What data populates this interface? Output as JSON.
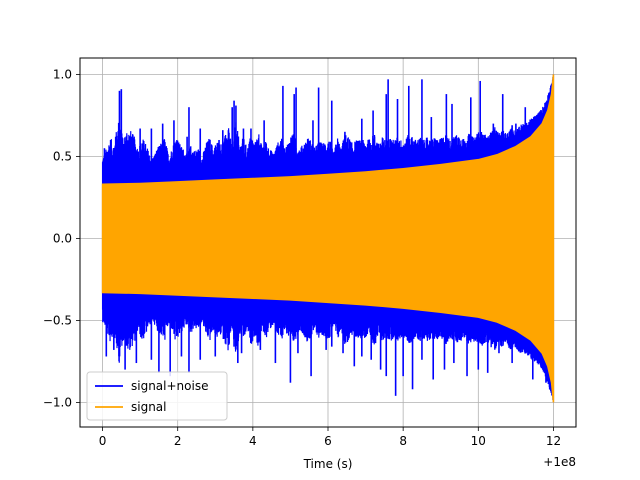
{
  "chart_data": {
    "type": "line",
    "title": "",
    "xlabel": "Time (s)",
    "ylabel": "",
    "x_offset_label": "+1e8",
    "xlim": [
      -0.6,
      12.6
    ],
    "ylim": [
      -1.15,
      1.1
    ],
    "xticks": [
      0,
      2,
      4,
      6,
      8,
      10,
      12
    ],
    "xtick_labels": [
      "0",
      "2",
      "4",
      "6",
      "8",
      "10",
      "12"
    ],
    "yticks": [
      -1.0,
      -0.5,
      0.0,
      0.5,
      1.0
    ],
    "ytick_labels": [
      "−1.0",
      "−0.5",
      "0.0",
      "0.5",
      "1.0"
    ],
    "grid": true,
    "legend_position": "lower-left",
    "series": [
      {
        "name": "signal+noise",
        "color": "#0000ff",
        "description_t": [
          0,
          12
        ],
        "upper": [
          [
            0.0,
            0.5
          ],
          [
            0.1,
            0.55
          ],
          [
            0.2,
            0.62
          ],
          [
            0.3,
            0.58
          ],
          [
            0.45,
            0.75
          ],
          [
            0.55,
            0.6
          ],
          [
            0.65,
            0.68
          ],
          [
            0.75,
            0.66
          ],
          [
            0.85,
            0.62
          ],
          [
            0.95,
            0.55
          ],
          [
            1.05,
            0.62
          ],
          [
            1.15,
            0.58
          ],
          [
            1.25,
            0.52
          ],
          [
            1.35,
            0.5
          ],
          [
            1.45,
            0.55
          ],
          [
            1.55,
            0.58
          ],
          [
            1.65,
            0.62
          ],
          [
            1.75,
            0.52
          ],
          [
            1.85,
            0.55
          ],
          [
            1.95,
            0.64
          ],
          [
            2.05,
            0.58
          ],
          [
            2.15,
            0.55
          ],
          [
            2.25,
            0.52
          ],
          [
            2.35,
            0.57
          ],
          [
            2.45,
            0.54
          ],
          [
            2.55,
            0.55
          ],
          [
            2.65,
            0.5
          ],
          [
            2.75,
            0.58
          ],
          [
            2.85,
            0.62
          ],
          [
            2.95,
            0.55
          ],
          [
            3.05,
            0.6
          ],
          [
            3.15,
            0.58
          ],
          [
            3.25,
            0.62
          ],
          [
            3.35,
            0.68
          ],
          [
            3.45,
            0.55
          ],
          [
            3.55,
            0.72
          ],
          [
            3.65,
            0.58
          ],
          [
            3.75,
            0.62
          ],
          [
            3.85,
            0.55
          ],
          [
            3.95,
            0.64
          ],
          [
            4.05,
            0.58
          ],
          [
            4.15,
            0.66
          ],
          [
            4.25,
            0.55
          ],
          [
            4.35,
            0.6
          ],
          [
            4.45,
            0.55
          ],
          [
            4.55,
            0.52
          ],
          [
            4.65,
            0.58
          ],
          [
            4.75,
            0.62
          ],
          [
            4.85,
            0.55
          ],
          [
            4.95,
            0.6
          ],
          [
            5.05,
            0.65
          ],
          [
            5.15,
            0.6
          ],
          [
            5.25,
            0.55
          ],
          [
            5.35,
            0.58
          ],
          [
            5.45,
            0.62
          ],
          [
            5.55,
            0.6
          ],
          [
            5.65,
            0.55
          ],
          [
            5.75,
            0.6
          ],
          [
            5.85,
            0.58
          ],
          [
            5.95,
            0.6
          ],
          [
            6.05,
            0.6
          ],
          [
            6.15,
            0.52
          ],
          [
            6.25,
            0.62
          ],
          [
            6.35,
            0.55
          ],
          [
            6.45,
            0.64
          ],
          [
            6.55,
            0.62
          ],
          [
            6.65,
            0.58
          ],
          [
            6.75,
            0.6
          ],
          [
            6.85,
            0.6
          ],
          [
            6.95,
            0.6
          ],
          [
            7.05,
            0.6
          ],
          [
            7.15,
            0.62
          ],
          [
            7.25,
            0.64
          ],
          [
            7.35,
            0.58
          ],
          [
            7.45,
            0.62
          ],
          [
            7.55,
            0.6
          ],
          [
            7.65,
            0.62
          ],
          [
            7.75,
            0.6
          ],
          [
            7.85,
            0.62
          ],
          [
            7.95,
            0.6
          ],
          [
            8.05,
            0.6
          ],
          [
            8.15,
            0.64
          ],
          [
            8.25,
            0.62
          ],
          [
            8.35,
            0.6
          ],
          [
            8.45,
            0.62
          ],
          [
            8.55,
            0.6
          ],
          [
            8.65,
            0.62
          ],
          [
            8.75,
            0.6
          ],
          [
            8.85,
            0.62
          ],
          [
            8.95,
            0.6
          ],
          [
            9.05,
            0.62
          ],
          [
            9.15,
            0.64
          ],
          [
            9.25,
            0.6
          ],
          [
            9.35,
            0.62
          ],
          [
            9.45,
            0.64
          ],
          [
            9.55,
            0.62
          ],
          [
            9.65,
            0.6
          ],
          [
            9.75,
            0.64
          ],
          [
            9.85,
            0.62
          ],
          [
            9.95,
            0.64
          ],
          [
            10.05,
            0.66
          ],
          [
            10.15,
            0.64
          ],
          [
            10.25,
            0.62
          ],
          [
            10.35,
            0.66
          ],
          [
            10.45,
            0.68
          ],
          [
            10.55,
            0.64
          ],
          [
            10.65,
            0.66
          ],
          [
            10.75,
            0.64
          ],
          [
            10.85,
            0.68
          ],
          [
            10.95,
            0.66
          ],
          [
            11.05,
            0.68
          ],
          [
            11.15,
            0.7
          ],
          [
            11.25,
            0.7
          ],
          [
            11.35,
            0.72
          ],
          [
            11.45,
            0.74
          ],
          [
            11.55,
            0.76
          ],
          [
            11.65,
            0.78
          ],
          [
            11.75,
            0.82
          ],
          [
            11.85,
            0.88
          ],
          [
            11.95,
            0.95
          ],
          [
            12.0,
            1.0
          ]
        ],
        "spikes": [
          [
            0.05,
            0.55
          ],
          [
            0.35,
            0.62
          ],
          [
            0.45,
            0.9
          ],
          [
            0.5,
            0.91
          ],
          [
            1.0,
            0.67
          ],
          [
            1.1,
            0.58
          ],
          [
            1.3,
            0.67
          ],
          [
            1.6,
            0.7
          ],
          [
            1.9,
            0.72
          ],
          [
            2.25,
            0.62
          ],
          [
            2.3,
            0.8
          ],
          [
            2.6,
            0.67
          ],
          [
            3.1,
            0.6
          ],
          [
            3.2,
            0.66
          ],
          [
            3.3,
            0.61
          ],
          [
            3.35,
            0.66
          ],
          [
            3.45,
            0.8
          ],
          [
            3.5,
            0.84
          ],
          [
            3.55,
            0.81
          ],
          [
            3.75,
            0.67
          ],
          [
            3.95,
            0.67
          ],
          [
            4.3,
            0.72
          ],
          [
            4.8,
            0.93
          ],
          [
            5.1,
            0.88
          ],
          [
            5.15,
            0.92
          ],
          [
            5.6,
            0.72
          ],
          [
            5.75,
            0.92
          ],
          [
            6.1,
            0.84
          ],
          [
            6.45,
            0.65
          ],
          [
            6.9,
            0.73
          ],
          [
            7.2,
            0.78
          ],
          [
            7.55,
            0.88
          ],
          [
            7.6,
            0.97
          ],
          [
            7.85,
            0.85
          ],
          [
            8.15,
            0.93
          ],
          [
            8.5,
            0.97
          ],
          [
            8.75,
            0.74
          ],
          [
            9.15,
            0.88
          ],
          [
            9.3,
            0.82
          ],
          [
            9.8,
            0.86
          ],
          [
            10.05,
            0.96
          ],
          [
            10.4,
            0.7
          ],
          [
            10.65,
            0.88
          ],
          [
            10.9,
            0.69
          ],
          [
            11.0,
            0.7
          ],
          [
            11.25,
            0.8
          ],
          [
            11.5,
            0.74
          ]
        ],
        "lower_spikes": [
          [
            0.1,
            -0.72
          ],
          [
            0.3,
            -0.68
          ],
          [
            0.45,
            -0.72
          ],
          [
            0.6,
            -0.8
          ],
          [
            0.9,
            -0.76
          ],
          [
            1.3,
            -0.74
          ],
          [
            1.5,
            -0.82
          ],
          [
            1.8,
            -0.84
          ],
          [
            2.1,
            -0.72
          ],
          [
            2.3,
            -0.82
          ],
          [
            2.6,
            -0.74
          ],
          [
            3.0,
            -0.72
          ],
          [
            3.5,
            -0.66
          ],
          [
            3.6,
            -0.76
          ],
          [
            3.7,
            -0.7
          ],
          [
            4.2,
            -0.68
          ],
          [
            4.6,
            -0.76
          ],
          [
            5.0,
            -0.88
          ],
          [
            5.2,
            -0.7
          ],
          [
            5.55,
            -0.84
          ],
          [
            5.95,
            -0.68
          ],
          [
            6.1,
            -0.66
          ],
          [
            6.4,
            -0.7
          ],
          [
            6.7,
            -0.78
          ],
          [
            6.9,
            -0.72
          ],
          [
            7.15,
            -0.74
          ],
          [
            7.4,
            -0.8
          ],
          [
            7.55,
            -0.84
          ],
          [
            7.8,
            -0.96
          ],
          [
            8.0,
            -0.84
          ],
          [
            8.25,
            -0.92
          ],
          [
            8.5,
            -0.74
          ],
          [
            8.8,
            -0.86
          ],
          [
            9.1,
            -0.8
          ],
          [
            9.35,
            -0.76
          ],
          [
            9.7,
            -0.84
          ],
          [
            10.0,
            -0.8
          ],
          [
            10.25,
            -0.82
          ],
          [
            10.55,
            -0.7
          ],
          [
            10.9,
            -0.76
          ],
          [
            11.2,
            -0.66
          ],
          [
            11.45,
            -0.86
          ],
          [
            11.55,
            -0.7
          ],
          [
            11.8,
            -0.88
          ],
          [
            11.9,
            -0.92
          ],
          [
            12.0,
            -1.0
          ]
        ]
      },
      {
        "name": "signal",
        "color": "#ffa500",
        "amplitude_curve": [
          [
            0.0,
            0.33
          ],
          [
            1.0,
            0.335
          ],
          [
            2.0,
            0.345
          ],
          [
            3.0,
            0.355
          ],
          [
            4.0,
            0.365
          ],
          [
            5.0,
            0.375
          ],
          [
            6.0,
            0.39
          ],
          [
            7.0,
            0.405
          ],
          [
            8.0,
            0.425
          ],
          [
            9.0,
            0.45
          ],
          [
            10.0,
            0.48
          ],
          [
            10.5,
            0.51
          ],
          [
            11.0,
            0.56
          ],
          [
            11.4,
            0.62
          ],
          [
            11.7,
            0.7
          ],
          [
            11.85,
            0.78
          ],
          [
            11.95,
            0.88
          ],
          [
            12.0,
            1.0
          ]
        ]
      }
    ]
  }
}
